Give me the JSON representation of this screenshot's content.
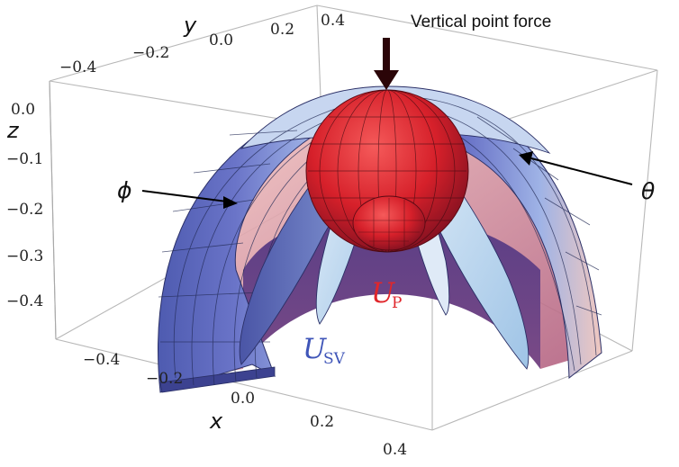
{
  "title": "Vertical point force",
  "axes": {
    "x": {
      "label": "x",
      "ticks": [
        "−0.4",
        "−0.2",
        "0.0",
        "0.2",
        "0.4"
      ]
    },
    "y": {
      "label": "y",
      "ticks": [
        "−0.4",
        "−0.2",
        "0.0",
        "0.2",
        "0.4"
      ]
    },
    "z": {
      "label": "z",
      "ticks": [
        "0.0",
        "−0.1",
        "−0.2",
        "−0.3",
        "−0.4"
      ]
    }
  },
  "annotations": {
    "phi": "ϕ",
    "theta": "θ"
  },
  "surfaces": {
    "p_wave": {
      "symbol": "U",
      "subscript": "P",
      "color": "#e0262b"
    },
    "sv_wave": {
      "symbol": "U",
      "subscript": "SV",
      "color": "#3f55b8"
    }
  }
}
